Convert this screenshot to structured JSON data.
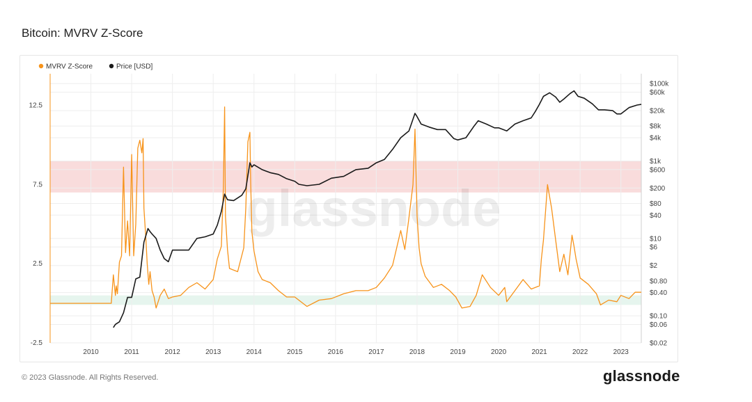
{
  "page": {
    "title": "Bitcoin: MVRV Z-Score",
    "copyright": "© 2023 Glassnode. All Rights Reserved.",
    "brand": "glassnode",
    "watermark": "glassnode"
  },
  "colors": {
    "zscore": "#f7931a",
    "price": "#1a1a1a",
    "red_band": "#f9dcdc",
    "green_band": "#e6f5ee",
    "grid": "#eeeeee"
  },
  "chart_data": {
    "type": "line",
    "title": "Bitcoin: MVRV Z-Score",
    "legend": [
      {
        "name": "MVRV Z-Score",
        "color": "#f7931a"
      },
      {
        "name": "Price [USD]",
        "color": "#1a1a1a"
      }
    ],
    "legend_position": "top-left",
    "x_ticks": [
      "2010",
      "2011",
      "2012",
      "2013",
      "2014",
      "2015",
      "2016",
      "2017",
      "2018",
      "2019",
      "2020",
      "2021",
      "2022",
      "2023"
    ],
    "x_range": [
      2009.0,
      2023.5
    ],
    "y_left": {
      "ticks": [
        "12.5",
        "7.5",
        "2.5",
        "-2.5"
      ],
      "tick_values": [
        12.5,
        7.5,
        2.5,
        -2.5
      ],
      "range": [
        -2.5,
        14.5
      ]
    },
    "y_right": {
      "scale": "log",
      "ticks": [
        "$100k",
        "$60k",
        "$20k",
        "$8k",
        "$4k",
        "$1k",
        "$600",
        "$200",
        "$80",
        "$40",
        "$10",
        "$6",
        "$2",
        "$0.80",
        "$0.40",
        "$0.10",
        "$0.06",
        "$0.02"
      ],
      "tick_values": [
        100000,
        60000,
        20000,
        8000,
        4000,
        1000,
        600,
        200,
        80,
        40,
        10,
        6,
        2,
        0.8,
        0.4,
        0.1,
        0.06,
        0.02
      ],
      "range": [
        0.02,
        180000
      ]
    },
    "bands": [
      {
        "axis": "left",
        "from": 7.0,
        "to": 9.0,
        "color": "#f9dcdc"
      },
      {
        "axis": "left",
        "from": -0.1,
        "to": 0.5,
        "color": "#e6f5ee"
      }
    ],
    "series": [
      {
        "name": "MVRV Z-Score",
        "axis": "left",
        "x": [
          2009.0,
          2010.5,
          2010.55,
          2010.6,
          2010.62,
          2010.65,
          2010.7,
          2010.75,
          2010.8,
          2010.85,
          2010.9,
          2010.95,
          2011.0,
          2011.05,
          2011.1,
          2011.15,
          2011.2,
          2011.25,
          2011.28,
          2011.3,
          2011.35,
          2011.38,
          2011.42,
          2011.45,
          2011.5,
          2011.55,
          2011.6,
          2011.7,
          2011.8,
          2011.9,
          2012.0,
          2012.2,
          2012.4,
          2012.6,
          2012.8,
          2013.0,
          2013.1,
          2013.2,
          2013.25,
          2013.28,
          2013.3,
          2013.35,
          2013.4,
          2013.6,
          2013.75,
          2013.8,
          2013.85,
          2013.9,
          2013.92,
          2013.95,
          2014.0,
          2014.1,
          2014.2,
          2014.4,
          2014.6,
          2014.8,
          2015.0,
          2015.3,
          2015.6,
          2015.9,
          2016.2,
          2016.5,
          2016.8,
          2017.0,
          2017.2,
          2017.4,
          2017.5,
          2017.6,
          2017.7,
          2017.8,
          2017.9,
          2017.95,
          2018.0,
          2018.05,
          2018.1,
          2018.2,
          2018.4,
          2018.6,
          2018.8,
          2018.95,
          2019.1,
          2019.3,
          2019.45,
          2019.6,
          2019.8,
          2020.0,
          2020.15,
          2020.2,
          2020.4,
          2020.6,
          2020.8,
          2021.0,
          2021.05,
          2021.1,
          2021.2,
          2021.3,
          2021.4,
          2021.5,
          2021.6,
          2021.7,
          2021.8,
          2021.85,
          2021.9,
          2022.0,
          2022.2,
          2022.4,
          2022.5,
          2022.7,
          2022.9,
          2023.0,
          2023.2,
          2023.35,
          2023.5
        ],
        "y": [
          0.0,
          0.0,
          1.8,
          0.5,
          1.1,
          0.6,
          2.6,
          3.0,
          8.6,
          3.2,
          5.2,
          3.0,
          9.4,
          3.0,
          5.0,
          9.8,
          10.3,
          9.5,
          10.4,
          6.0,
          4.0,
          2.5,
          1.2,
          2.0,
          0.8,
          0.4,
          -0.3,
          0.5,
          0.9,
          0.3,
          0.4,
          0.5,
          1.0,
          1.3,
          0.9,
          1.5,
          2.8,
          3.6,
          7.3,
          12.4,
          5.5,
          3.4,
          2.2,
          2.0,
          3.5,
          6.0,
          10.2,
          10.8,
          7.5,
          4.5,
          3.3,
          2.0,
          1.5,
          1.3,
          0.8,
          0.4,
          0.4,
          -0.2,
          0.2,
          0.3,
          0.6,
          0.8,
          0.8,
          1.0,
          1.6,
          2.4,
          3.5,
          4.6,
          3.4,
          5.4,
          7.5,
          11.0,
          5.5,
          3.5,
          2.5,
          1.7,
          1.0,
          1.2,
          0.8,
          0.4,
          -0.3,
          -0.2,
          0.5,
          1.8,
          1.0,
          0.5,
          1.0,
          0.1,
          0.8,
          1.5,
          0.9,
          1.1,
          2.8,
          4.0,
          7.5,
          6.0,
          4.0,
          2.0,
          3.1,
          1.8,
          4.3,
          3.6,
          2.8,
          1.6,
          1.2,
          0.6,
          -0.1,
          0.2,
          0.1,
          0.5,
          0.3,
          0.7,
          0.7
        ]
      },
      {
        "name": "Price [USD]",
        "axis": "right",
        "x": [
          2010.55,
          2010.6,
          2010.7,
          2010.8,
          2010.9,
          2011.0,
          2011.1,
          2011.2,
          2011.3,
          2011.4,
          2011.45,
          2011.5,
          2011.6,
          2011.7,
          2011.8,
          2011.9,
          2012.0,
          2012.2,
          2012.4,
          2012.6,
          2012.8,
          2013.0,
          2013.1,
          2013.2,
          2013.28,
          2013.35,
          2013.5,
          2013.7,
          2013.8,
          2013.9,
          2013.95,
          2014.0,
          2014.2,
          2014.4,
          2014.6,
          2014.8,
          2015.0,
          2015.1,
          2015.3,
          2015.6,
          2015.9,
          2016.2,
          2016.5,
          2016.8,
          2017.0,
          2017.2,
          2017.4,
          2017.6,
          2017.8,
          2017.95,
          2018.0,
          2018.1,
          2018.3,
          2018.5,
          2018.7,
          2018.9,
          2019.0,
          2019.2,
          2019.4,
          2019.5,
          2019.7,
          2019.9,
          2020.0,
          2020.2,
          2020.4,
          2020.6,
          2020.8,
          2020.9,
          2021.0,
          2021.1,
          2021.25,
          2021.4,
          2021.5,
          2021.6,
          2021.75,
          2021.85,
          2021.95,
          2022.1,
          2022.3,
          2022.45,
          2022.6,
          2022.8,
          2022.9,
          2023.0,
          2023.2,
          2023.4,
          2023.5
        ],
        "y": [
          0.05,
          0.06,
          0.07,
          0.12,
          0.3,
          0.3,
          0.9,
          1.0,
          8.0,
          18.0,
          15.0,
          13.0,
          10.0,
          5.0,
          3.0,
          2.5,
          5.0,
          5.0,
          5.0,
          10.0,
          11.0,
          13.0,
          22.0,
          50.0,
          140.0,
          100.0,
          95.0,
          130.0,
          190.0,
          900.0,
          700.0,
          800.0,
          600.0,
          500.0,
          450.0,
          350.0,
          300.0,
          250.0,
          230.0,
          250.0,
          360.0,
          400.0,
          600.0,
          650.0,
          900.0,
          1100.0,
          2000.0,
          4000.0,
          6000.0,
          17000.0,
          14000.0,
          9000.0,
          7500.0,
          6500.0,
          6500.0,
          3800.0,
          3500.0,
          4000.0,
          8000.0,
          11000.0,
          9000.0,
          7200.0,
          7200.0,
          6000.0,
          9000.0,
          11000.0,
          13000.0,
          19000.0,
          29000.0,
          47000.0,
          58000.0,
          45000.0,
          33000.0,
          40000.0,
          55000.0,
          65000.0,
          47000.0,
          42000.0,
          30000.0,
          21000.0,
          21000.0,
          20000.0,
          16500.0,
          16500.0,
          24000.0,
          28000.0,
          29000.0
        ]
      }
    ]
  }
}
